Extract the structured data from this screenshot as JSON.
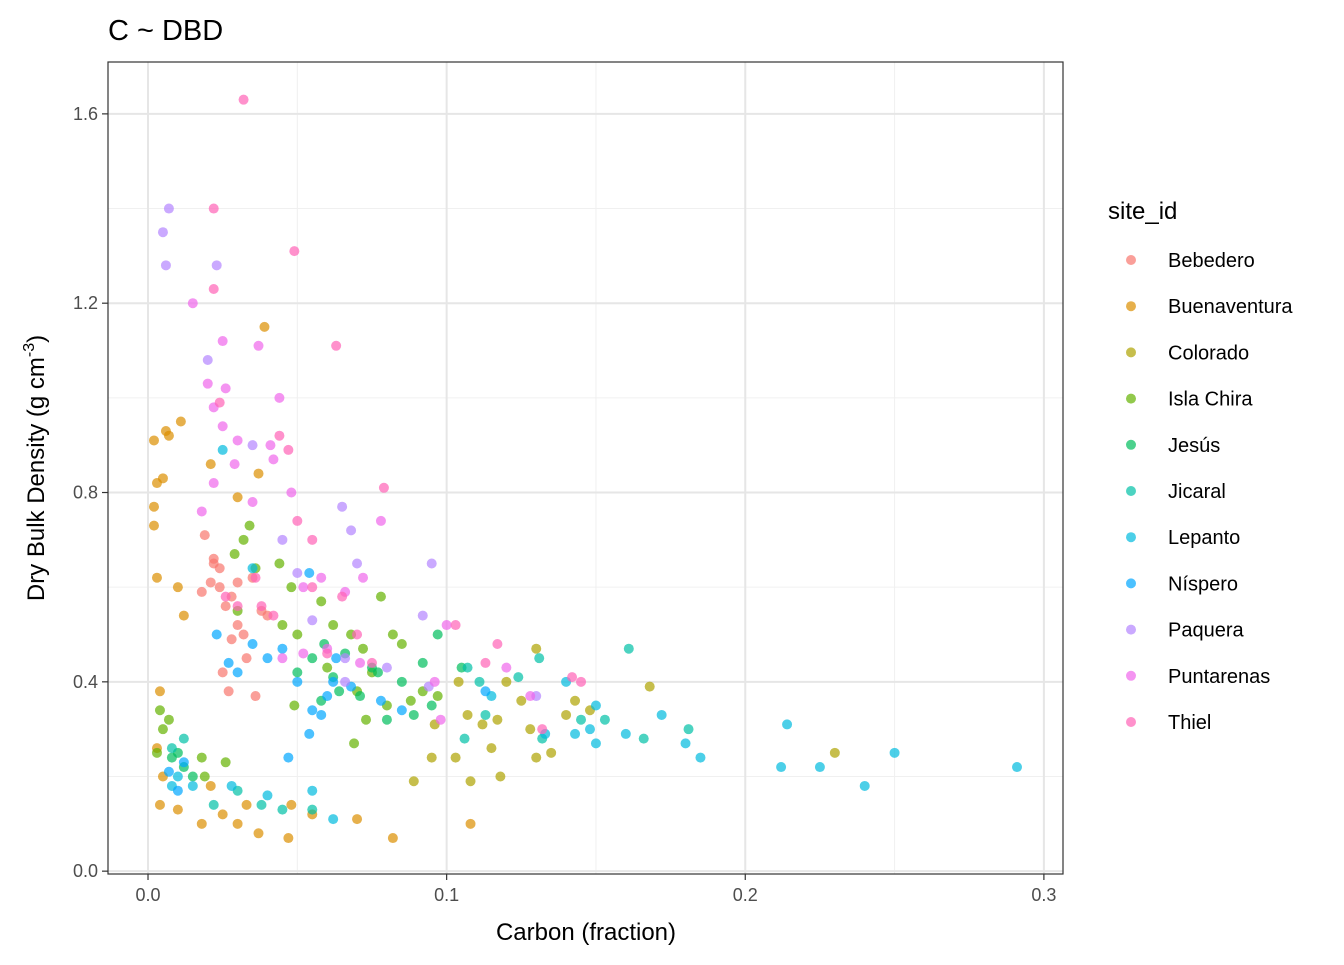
{
  "chart_data": {
    "type": "scatter",
    "title": "C ~ DBD",
    "xlabel": "Carbon (fraction)",
    "ylabel": "Dry Bulk Density (g cm",
    "ylabel_sup": "-3",
    "ylabel_end": ")",
    "legend_title": "site_id",
    "xlim": [
      -0.0134,
      0.3064
    ],
    "ylim": [
      -0.006,
      1.7096
    ],
    "xticks": [
      {
        "value": 0,
        "label": "0.0"
      },
      0.1,
      0.2,
      0.3
    ],
    "yticks": [
      {
        "value": 0,
        "label": "0.0"
      },
      0.4,
      0.8,
      1.2,
      1.6
    ],
    "xminor": [
      0.05,
      0.15,
      0.25
    ],
    "yminor": [
      0.2,
      0.6,
      1.0,
      1.4
    ],
    "grid": true,
    "series": [
      {
        "name": "Bebedero",
        "color": "#F8766D",
        "x": [
          0.019,
          0.022,
          0.024,
          0.026,
          0.028,
          0.03,
          0.033,
          0.025,
          0.027,
          0.036,
          0.04,
          0.018,
          0.021,
          0.03,
          0.024,
          0.032,
          0.038,
          0.028,
          0.035,
          0.022
        ],
        "values": [
          0.71,
          0.65,
          0.6,
          0.56,
          0.58,
          0.52,
          0.45,
          0.42,
          0.38,
          0.37,
          0.54,
          0.59,
          0.61,
          0.61,
          0.64,
          0.5,
          0.55,
          0.49,
          0.62,
          0.66
        ]
      },
      {
        "name": "Buenaventura",
        "color": "#DB8E00",
        "x": [
          0.002,
          0.006,
          0.007,
          0.011,
          0.003,
          0.005,
          0.002,
          0.002,
          0.003,
          0.01,
          0.012,
          0.004,
          0.003,
          0.005,
          0.004,
          0.01,
          0.018,
          0.025,
          0.03,
          0.037,
          0.047,
          0.055,
          0.082,
          0.108,
          0.039,
          0.021,
          0.03,
          0.037,
          0.07,
          0.033,
          0.048,
          0.021
        ],
        "values": [
          0.91,
          0.93,
          0.92,
          0.95,
          0.82,
          0.83,
          0.77,
          0.73,
          0.62,
          0.6,
          0.54,
          0.38,
          0.26,
          0.2,
          0.14,
          0.13,
          0.1,
          0.12,
          0.1,
          0.08,
          0.07,
          0.12,
          0.07,
          0.1,
          1.15,
          0.86,
          0.79,
          0.84,
          0.11,
          0.14,
          0.14,
          0.18
        ]
      },
      {
        "name": "Colorado",
        "color": "#AEA200",
        "x": [
          0.13,
          0.168,
          0.23,
          0.148,
          0.143,
          0.12,
          0.107,
          0.112,
          0.096,
          0.089,
          0.095,
          0.103,
          0.108,
          0.115,
          0.118,
          0.125,
          0.13,
          0.135,
          0.14,
          0.128,
          0.104,
          0.117
        ],
        "values": [
          0.47,
          0.39,
          0.25,
          0.34,
          0.36,
          0.4,
          0.33,
          0.31,
          0.31,
          0.19,
          0.24,
          0.24,
          0.19,
          0.26,
          0.2,
          0.36,
          0.24,
          0.25,
          0.33,
          0.3,
          0.4,
          0.32
        ]
      },
      {
        "name": "Isla Chira",
        "color": "#64B200",
        "x": [
          0.034,
          0.029,
          0.032,
          0.036,
          0.044,
          0.048,
          0.058,
          0.062,
          0.068,
          0.072,
          0.078,
          0.082,
          0.085,
          0.075,
          0.07,
          0.073,
          0.08,
          0.088,
          0.092,
          0.097,
          0.06,
          0.05,
          0.045,
          0.03,
          0.026,
          0.018,
          0.019,
          0.007,
          0.004,
          0.005,
          0.003,
          0.069,
          0.049
        ],
        "values": [
          0.73,
          0.67,
          0.7,
          0.64,
          0.65,
          0.6,
          0.57,
          0.52,
          0.5,
          0.47,
          0.58,
          0.5,
          0.48,
          0.42,
          0.38,
          0.32,
          0.35,
          0.36,
          0.38,
          0.37,
          0.43,
          0.5,
          0.52,
          0.55,
          0.23,
          0.24,
          0.2,
          0.32,
          0.34,
          0.3,
          0.25,
          0.27,
          0.35
        ]
      },
      {
        "name": "Jesús",
        "color": "#00BD5C",
        "x": [
          0.097,
          0.105,
          0.092,
          0.085,
          0.077,
          0.066,
          0.059,
          0.055,
          0.062,
          0.071,
          0.08,
          0.075,
          0.064,
          0.058,
          0.05,
          0.089,
          0.095,
          0.01,
          0.012,
          0.015,
          0.008
        ],
        "values": [
          0.5,
          0.43,
          0.44,
          0.4,
          0.42,
          0.46,
          0.48,
          0.45,
          0.41,
          0.37,
          0.32,
          0.43,
          0.38,
          0.36,
          0.42,
          0.33,
          0.35,
          0.25,
          0.22,
          0.2,
          0.24
        ]
      },
      {
        "name": "Jicaral",
        "color": "#00C1A7",
        "x": [
          0.161,
          0.131,
          0.124,
          0.107,
          0.111,
          0.153,
          0.145,
          0.132,
          0.106,
          0.181,
          0.166,
          0.113,
          0.012,
          0.008,
          0.03,
          0.022,
          0.055,
          0.045,
          0.038
        ],
        "values": [
          0.47,
          0.45,
          0.41,
          0.43,
          0.4,
          0.32,
          0.32,
          0.28,
          0.28,
          0.3,
          0.28,
          0.33,
          0.28,
          0.26,
          0.17,
          0.14,
          0.13,
          0.13,
          0.14
        ]
      },
      {
        "name": "Lepanto",
        "color": "#00BADE",
        "x": [
          0.214,
          0.25,
          0.291,
          0.24,
          0.225,
          0.212,
          0.185,
          0.18,
          0.172,
          0.16,
          0.15,
          0.148,
          0.143,
          0.15,
          0.14,
          0.133,
          0.025,
          0.035,
          0.01,
          0.008,
          0.015,
          0.028,
          0.04,
          0.055,
          0.062,
          0.115
        ],
        "values": [
          0.31,
          0.25,
          0.22,
          0.18,
          0.22,
          0.22,
          0.24,
          0.27,
          0.33,
          0.29,
          0.27,
          0.3,
          0.29,
          0.35,
          0.4,
          0.29,
          0.89,
          0.64,
          0.2,
          0.18,
          0.18,
          0.18,
          0.16,
          0.17,
          0.11,
          0.37
        ]
      },
      {
        "name": "Níspero",
        "color": "#00A6FF",
        "x": [
          0.054,
          0.04,
          0.035,
          0.045,
          0.023,
          0.027,
          0.03,
          0.05,
          0.055,
          0.058,
          0.054,
          0.047,
          0.06,
          0.062,
          0.068,
          0.078,
          0.085,
          0.01,
          0.012,
          0.007,
          0.113,
          0.063
        ],
        "values": [
          0.63,
          0.45,
          0.48,
          0.47,
          0.5,
          0.44,
          0.42,
          0.4,
          0.34,
          0.33,
          0.29,
          0.24,
          0.37,
          0.4,
          0.39,
          0.36,
          0.34,
          0.17,
          0.23,
          0.21,
          0.38,
          0.45
        ]
      },
      {
        "name": "Paquera",
        "color": "#B385FF",
        "x": [
          0.007,
          0.005,
          0.006,
          0.023,
          0.02,
          0.065,
          0.068,
          0.095,
          0.07,
          0.092,
          0.055,
          0.05,
          0.045,
          0.035,
          0.066,
          0.094,
          0.13,
          0.08,
          0.066
        ],
        "values": [
          1.4,
          1.35,
          1.28,
          1.28,
          1.08,
          0.77,
          0.72,
          0.65,
          0.65,
          0.54,
          0.53,
          0.63,
          0.7,
          0.9,
          0.45,
          0.39,
          0.37,
          0.43,
          0.4
        ]
      },
      {
        "name": "Puntarenas",
        "color": "#EF67EB",
        "x": [
          0.015,
          0.025,
          0.037,
          0.02,
          0.026,
          0.044,
          0.022,
          0.025,
          0.03,
          0.042,
          0.048,
          0.035,
          0.041,
          0.029,
          0.022,
          0.018,
          0.078,
          0.072,
          0.058,
          0.052,
          0.066,
          0.1,
          0.12,
          0.128,
          0.098,
          0.071,
          0.096,
          0.06,
          0.052,
          0.045
        ],
        "values": [
          1.2,
          1.12,
          1.11,
          1.03,
          1.02,
          1.0,
          0.98,
          0.94,
          0.91,
          0.87,
          0.8,
          0.78,
          0.9,
          0.86,
          0.82,
          0.76,
          0.74,
          0.62,
          0.62,
          0.6,
          0.59,
          0.52,
          0.43,
          0.37,
          0.32,
          0.44,
          0.4,
          0.47,
          0.46,
          0.45
        ]
      },
      {
        "name": "Thiel",
        "color": "#FF63B6",
        "x": [
          0.032,
          0.022,
          0.049,
          0.022,
          0.063,
          0.024,
          0.044,
          0.047,
          0.079,
          0.05,
          0.055,
          0.055,
          0.065,
          0.07,
          0.103,
          0.117,
          0.113,
          0.142,
          0.145,
          0.132,
          0.036,
          0.026,
          0.038,
          0.042,
          0.03,
          0.06,
          0.075
        ],
        "values": [
          1.63,
          1.4,
          1.31,
          1.23,
          1.11,
          0.99,
          0.92,
          0.89,
          0.81,
          0.74,
          0.7,
          0.6,
          0.58,
          0.5,
          0.52,
          0.48,
          0.44,
          0.41,
          0.4,
          0.3,
          0.62,
          0.58,
          0.56,
          0.54,
          0.56,
          0.46,
          0.44
        ]
      }
    ]
  }
}
